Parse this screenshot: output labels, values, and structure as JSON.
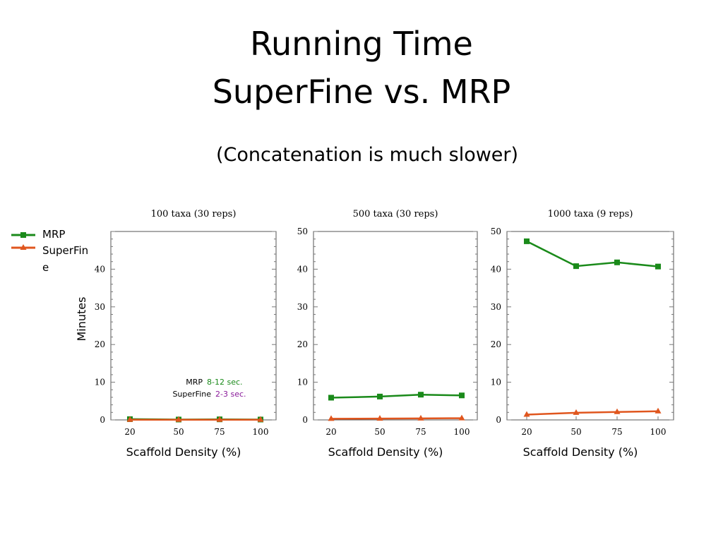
{
  "slide": {
    "title_line1": "Running Time",
    "title_line2": "SuperFine vs. MRP",
    "subtitle": "(Concatenation is much slower)"
  },
  "colors": {
    "MRP": "#1a8a1a",
    "SuperFine": "#e0561e",
    "axis": "#555555",
    "grid_tick": "#777777"
  },
  "legend": {
    "items": [
      {
        "label": "MRP",
        "marker": "square"
      },
      {
        "label_lines": [
          "SuperFin",
          "e"
        ],
        "marker": "triangle"
      }
    ]
  },
  "ylabel_text": "Minutes",
  "annotation": {
    "mrp_label": "MRP",
    "mrp_value": "8-12 sec.",
    "superfine_label": "SuperFine",
    "superfine_value": "2-3 sec."
  },
  "chart_data": [
    {
      "type": "line",
      "title": "100 taxa (30 reps)",
      "xlabel": "Scaffold Density (%)",
      "categories": [
        20,
        50,
        75,
        100
      ],
      "ylim": [
        0,
        50
      ],
      "y_ticks": [
        0,
        10,
        20,
        30,
        40
      ],
      "series": [
        {
          "name": "MRP",
          "values": [
            0.2,
            0.1,
            0.15,
            0.1
          ]
        },
        {
          "name": "SuperFine",
          "values": [
            0.05,
            0.04,
            0.04,
            0.04
          ]
        }
      ]
    },
    {
      "type": "line",
      "title": "500 taxa (30 reps)",
      "xlabel": "Scaffold Density (%)",
      "categories": [
        20,
        50,
        75,
        100
      ],
      "ylim": [
        0,
        50
      ],
      "y_ticks": [
        0,
        10,
        20,
        30,
        40,
        50
      ],
      "series": [
        {
          "name": "MRP",
          "values": [
            5.9,
            6.2,
            6.7,
            6.5
          ]
        },
        {
          "name": "SuperFine",
          "values": [
            0.3,
            0.35,
            0.4,
            0.45
          ]
        }
      ]
    },
    {
      "type": "line",
      "title": "1000 taxa (9 reps)",
      "xlabel": "Scaffold Density (%)",
      "categories": [
        20,
        50,
        75,
        100
      ],
      "ylim": [
        0,
        50
      ],
      "y_ticks": [
        0,
        10,
        20,
        30,
        40,
        50
      ],
      "series": [
        {
          "name": "MRP",
          "values": [
            47.4,
            40.8,
            41.8,
            40.7
          ]
        },
        {
          "name": "SuperFine",
          "values": [
            1.4,
            1.9,
            2.1,
            2.3
          ]
        }
      ]
    }
  ]
}
